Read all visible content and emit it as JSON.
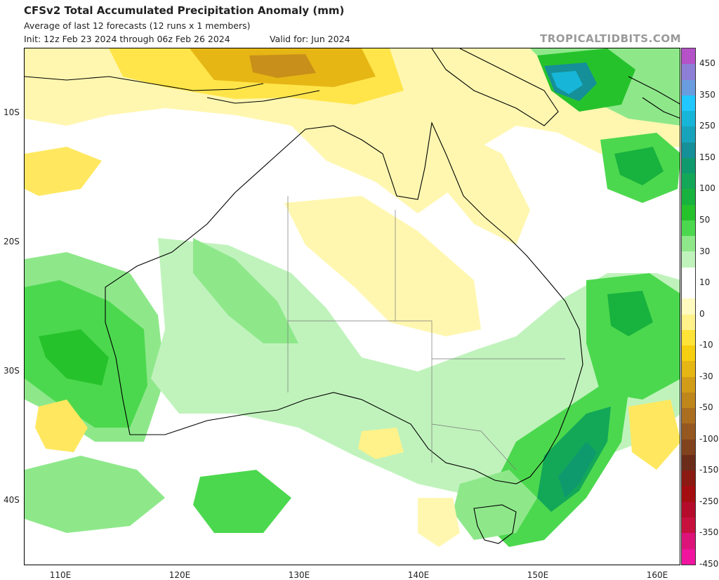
{
  "header": {
    "title": "CFSv2 Total Accumulated Precipitation Anomaly (mm)",
    "subtitle": "Average of last 12 forecasts (12 runs x 1 members)",
    "init": "Init: 12z Feb 23 2024 through 06z Feb 26 2024",
    "valid": "Valid for: Jun 2024",
    "brand": "TROPICALTIDBITS.COM"
  },
  "axes": {
    "lat_labels": [
      "10S",
      "20S",
      "30S",
      "40S"
    ],
    "lon_labels": [
      "110E",
      "120E",
      "130E",
      "140E",
      "150E",
      "160E"
    ]
  },
  "colorbar": {
    "labels": [
      "450",
      "350",
      "250",
      "150",
      "100",
      "50",
      "30",
      "10",
      "0",
      "-10",
      "-30",
      "-50",
      "-100",
      "-150",
      "-250",
      "-350",
      "-450"
    ],
    "colors": [
      "#b552c8",
      "#8e7fd6",
      "#6a9ce0",
      "#20c8ff",
      "#17b6d8",
      "#18a3bc",
      "#158f98",
      "#0f9a6e",
      "#12a858",
      "#18b23e",
      "#26c22c",
      "#4cd84e",
      "#8ee88a",
      "#c0f3bc",
      "#ffffff",
      "#ffffff",
      "#fffac0",
      "#fff28a",
      "#ffe338",
      "#f6cf10",
      "#e6b614",
      "#d39c18",
      "#bf861c",
      "#ab6e20",
      "#955820",
      "#81421e",
      "#6c2c1a",
      "#8a1a12",
      "#a40e10",
      "#b50c2c",
      "#c8103e",
      "#dc147a",
      "#f0149e"
    ]
  }
}
